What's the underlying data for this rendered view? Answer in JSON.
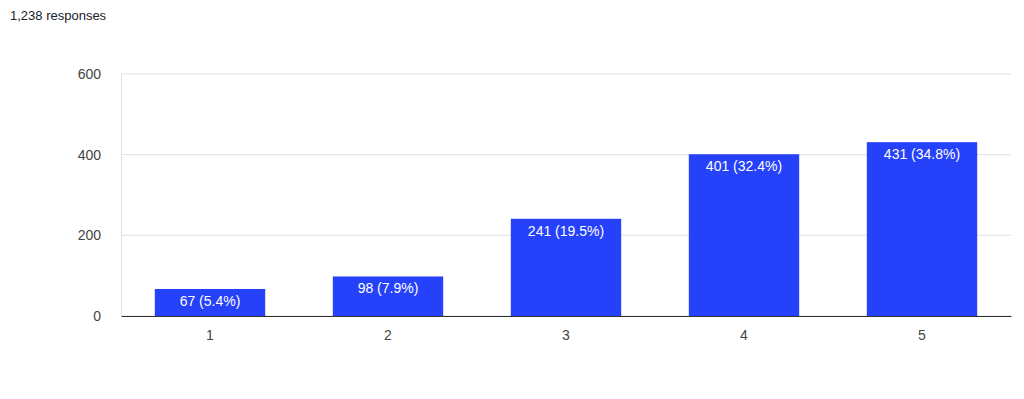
{
  "chart_data": {
    "type": "bar",
    "title": "1,238 responses",
    "categories": [
      "1",
      "2",
      "3",
      "4",
      "5"
    ],
    "values": [
      67,
      98,
      241,
      401,
      431
    ],
    "value_labels": [
      "67 (5.4%)",
      "98 (7.9%)",
      "241 (19.5%)",
      "401 (32.4%)",
      "431 (34.8%)"
    ],
    "data_labels": true,
    "color": "#2541fa",
    "ylim": [
      0,
      600
    ],
    "yticks": [
      0,
      200,
      400,
      600
    ],
    "grid": true
  }
}
